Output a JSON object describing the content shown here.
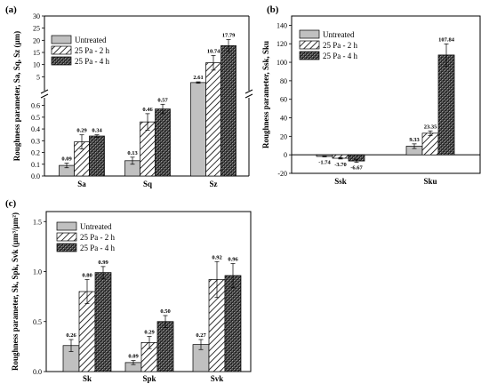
{
  "chart_data": [
    {
      "panel": "(a)",
      "type": "bar",
      "categories": [
        "Sa",
        "Sq",
        "Sz"
      ],
      "series": [
        {
          "name": "Untreated",
          "values": [
            0.09,
            0.13,
            2.61
          ],
          "errors": [
            0.02,
            0.03,
            0.3
          ]
        },
        {
          "name": "25 Pa - 2 h",
          "values": [
            0.29,
            0.46,
            10.74
          ],
          "errors": [
            0.06,
            0.07,
            3.0
          ]
        },
        {
          "name": "25 Pa - 4 h",
          "values": [
            0.34,
            0.57,
            17.79
          ],
          "errors": [
            0.01,
            0.04,
            2.5
          ]
        }
      ],
      "ylabel": "Roughness parameter, Sa, Sq, Sz (µm)",
      "ylim_lower": [
        0,
        0.65
      ],
      "ylim_upper": [
        0,
        30
      ],
      "yticks_lower": [
        "0.0",
        "0.1",
        "0.2",
        "0.3",
        "0.4",
        "0.5",
        "0.6"
      ],
      "yticks_upper": [
        "5",
        "10",
        "15",
        "20",
        "25",
        "30"
      ],
      "data_labels": [
        "0.09",
        "0.29",
        "0.34",
        "0.13",
        "0.46",
        "0.57",
        "2.61",
        "10.74",
        "17.79"
      ],
      "legend_position": "top-left"
    },
    {
      "panel": "(b)",
      "type": "bar",
      "categories": [
        "Ssk",
        "Sku"
      ],
      "series": [
        {
          "name": "Untreated",
          "values": [
            -1.74,
            9.33
          ],
          "errors": [
            0.5,
            2.5
          ]
        },
        {
          "name": "25 Pa - 2 h",
          "values": [
            -3.7,
            23.35
          ],
          "errors": [
            0.8,
            2.5
          ]
        },
        {
          "name": "25 Pa - 4 h",
          "values": [
            -6.67,
            107.84
          ],
          "errors": [
            1.5,
            12
          ]
        }
      ],
      "ylabel": "Roughness parameter, Ssk, Sku",
      "ylim": [
        -20,
        150
      ],
      "yticks": [
        "-20",
        "0",
        "20",
        "40",
        "60",
        "80",
        "100",
        "120",
        "140"
      ],
      "data_labels": [
        "-1.74",
        "-3.70",
        "-6.67",
        "9.33",
        "23.35",
        "107.84"
      ],
      "legend_position": "top-left"
    },
    {
      "panel": "(c)",
      "type": "bar",
      "categories": [
        "Sk",
        "Spk",
        "Svk"
      ],
      "series": [
        {
          "name": "Untreated",
          "values": [
            0.26,
            0.09,
            0.27
          ],
          "errors": [
            0.06,
            0.02,
            0.05
          ]
        },
        {
          "name": "25 Pa - 2 h",
          "values": [
            0.8,
            0.29,
            0.92
          ],
          "errors": [
            0.12,
            0.06,
            0.18
          ]
        },
        {
          "name": "25 Pa - 4 h",
          "values": [
            0.99,
            0.5,
            0.96
          ],
          "errors": [
            0.06,
            0.06,
            0.12
          ]
        }
      ],
      "ylabel": "Roughness parameter, Sk, Spk, Svk (µm³/µm²)",
      "ylim": [
        0,
        1.6
      ],
      "yticks": [
        "0.0",
        "0.5",
        "1.0",
        "1.5"
      ],
      "data_labels": [
        "0.26",
        "0.80",
        "0.99",
        "0.09",
        "0.29",
        "0.50",
        "0.27",
        "0.92",
        "0.96"
      ],
      "legend_position": "top-left"
    }
  ]
}
